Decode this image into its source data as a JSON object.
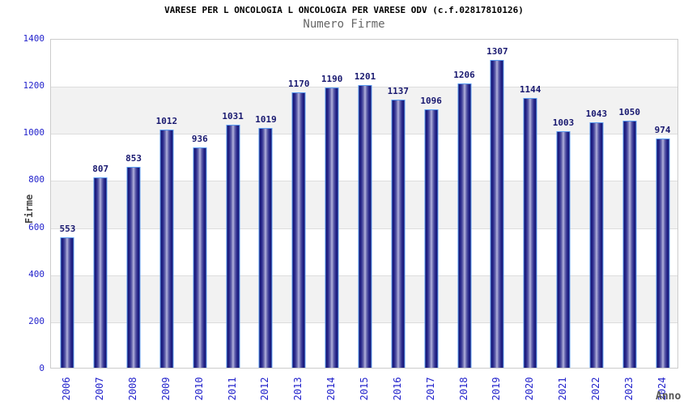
{
  "header": {
    "title": "VARESE PER L ONCOLOGIA L ONCOLOGIA PER VARESE ODV (c.f.02817810126)",
    "subtitle": "Numero Firme"
  },
  "chart_data": {
    "type": "bar",
    "title": "VARESE PER L ONCOLOGIA L ONCOLOGIA PER VARESE ODV (c.f.02817810126)",
    "subtitle": "Numero Firme",
    "xlabel": "Anno",
    "ylabel": "Firme",
    "categories": [
      "2006",
      "2007",
      "2008",
      "2009",
      "2010",
      "2011",
      "2012",
      "2013",
      "2014",
      "2015",
      "2016",
      "2017",
      "2018",
      "2019",
      "2020",
      "2021",
      "2022",
      "2023",
      "2024"
    ],
    "values": [
      553,
      807,
      853,
      1012,
      936,
      1031,
      1019,
      1170,
      1190,
      1201,
      1137,
      1096,
      1206,
      1307,
      1144,
      1003,
      1043,
      1050,
      974
    ],
    "ylim": [
      0,
      1400
    ],
    "y_ticks": [
      0,
      200,
      400,
      600,
      800,
      1000,
      1200,
      1400
    ],
    "grid": true,
    "legend": false,
    "band_color": "#f2f2f2",
    "grid_color": "#dddddd",
    "bar_dark_color": "#14146e",
    "bar_light_color": "#b4b4de",
    "bar_border_color": "#5b9bf0",
    "value_label_color": "#191970",
    "axis_tick_color": "#2323cc",
    "title_color": "#000000",
    "subtitle_color": "#666666",
    "axis_title_color": "#555555"
  }
}
